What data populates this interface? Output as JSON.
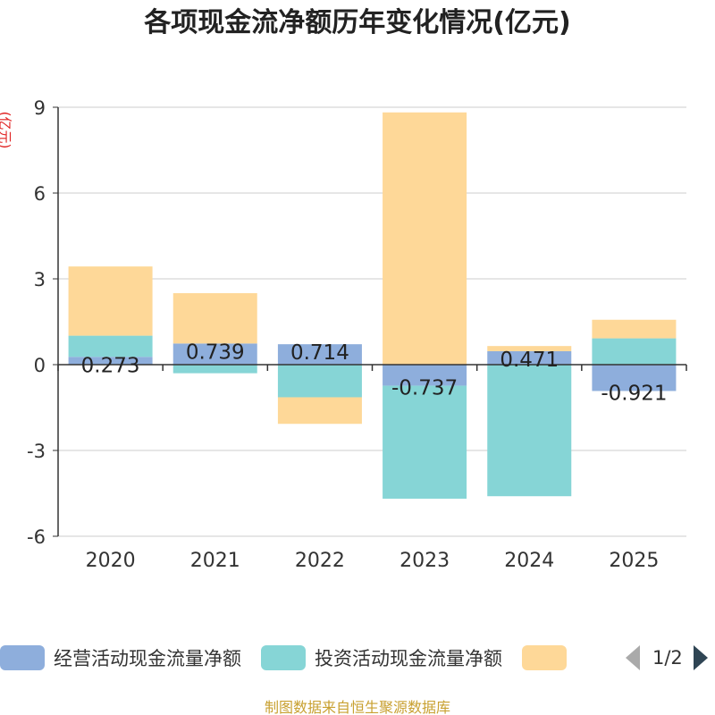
{
  "chart_data": {
    "type": "bar",
    "stacked": true,
    "title": "各项现金流净额历年变化情况(亿元)",
    "ylabel": "(亿元)",
    "xlabel": "",
    "ylim": [
      -6,
      9
    ],
    "yticks": [
      9,
      6,
      3,
      0,
      -3,
      -6
    ],
    "categories": [
      "2020",
      "2021",
      "2022",
      "2023",
      "2024",
      "2025"
    ],
    "series": [
      {
        "name": "经营活动现金流量净额",
        "color": "#8eaedc",
        "values": [
          0.273,
          0.739,
          0.714,
          -0.737,
          0.471,
          -0.921
        ]
      },
      {
        "name": "投资活动现金流量净额",
        "color": "#86d5d6",
        "values": [
          0.74,
          -0.3,
          -1.14,
          -3.95,
          -4.6,
          0.92
        ]
      },
      {
        "name": "",
        "color": "#fed898",
        "values": [
          2.42,
          1.76,
          -0.93,
          8.82,
          0.18,
          0.65
        ]
      }
    ],
    "data_labels": [
      "0.273",
      "0.739",
      "0.714",
      "-0.737",
      "0.471",
      "-0.921"
    ]
  },
  "legend": {
    "items": [
      {
        "label": "经营活动现金流量净额",
        "color": "#8eaedc"
      },
      {
        "label": "投资活动现金流量净额",
        "color": "#86d5d6"
      },
      {
        "label": "",
        "color": "#fed898"
      }
    ],
    "page": "1/2"
  },
  "footer": {
    "source": "制图数据来自恒生聚源数据库"
  }
}
